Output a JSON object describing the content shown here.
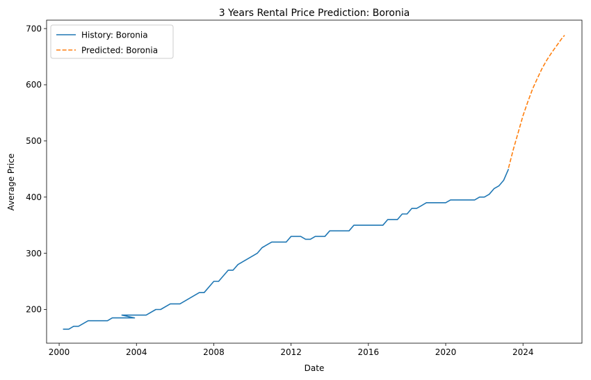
{
  "chart_data": {
    "type": "line",
    "title": "3 Years Rental Price Prediction: Boronia",
    "xlabel": "Date",
    "ylabel": "Average Price",
    "xlim": [
      1999.35,
      2027.05
    ],
    "ylim": [
      140,
      715
    ],
    "x_ticks": [
      2000,
      2004,
      2008,
      2012,
      2016,
      2020,
      2024
    ],
    "y_ticks": [
      200,
      300,
      400,
      500,
      600,
      700
    ],
    "grid": false,
    "legend_position": "top-left",
    "series": [
      {
        "name": "History: Boronia",
        "color": "#1f77b4",
        "dash": "solid",
        "x": [
          2000.2,
          2000.5,
          2000.75,
          2001.0,
          2001.5,
          2002.0,
          2002.5,
          2002.75,
          2003.0,
          2003.25,
          2003.5,
          2003.9,
          2003.25,
          2004.5,
          2005.0,
          2005.25,
          2005.75,
          2006.25,
          2006.75,
          2007.25,
          2007.5,
          2008.0,
          2008.25,
          2008.75,
          2009.0,
          2009.25,
          2010.25,
          2010.5,
          2011.0,
          2011.75,
          2012.0,
          2012.5,
          2012.75,
          2013.0,
          2013.25,
          2013.5,
          2013.75,
          2014.0,
          2014.5,
          2015.0,
          2015.25,
          2015.5,
          2016.75,
          2017.0,
          2017.5,
          2017.75,
          2018.0,
          2018.25,
          2018.5,
          2018.75,
          2019.0,
          2019.5,
          2020.0,
          2020.25,
          2020.5,
          2021.0,
          2021.5,
          2021.75,
          2022.0,
          2022.25,
          2022.5,
          2022.75,
          2023.0,
          2023.25
        ],
        "y": [
          165,
          165,
          170,
          170,
          180,
          180,
          180,
          185,
          185,
          185,
          185,
          185,
          190,
          190,
          200,
          200,
          210,
          210,
          220,
          230,
          230,
          250,
          250,
          270,
          270,
          280,
          300,
          310,
          320,
          320,
          330,
          330,
          325,
          325,
          330,
          330,
          330,
          340,
          340,
          340,
          350,
          350,
          350,
          360,
          360,
          370,
          370,
          380,
          380,
          385,
          390,
          390,
          390,
          395,
          395,
          395,
          395,
          400,
          400,
          405,
          415,
          420,
          430,
          450
        ]
      },
      {
        "name": "Predicted: Boronia",
        "color": "#ff7f0e",
        "dash": "dashed",
        "x": [
          2023.25,
          2023.5,
          2023.75,
          2024.0,
          2024.25,
          2024.5,
          2024.75,
          2025.0,
          2025.25,
          2025.5,
          2025.75,
          2026.0,
          2026.15
        ],
        "y": [
          452,
          485,
          515,
          545,
          570,
          593,
          612,
          630,
          645,
          658,
          670,
          682,
          688
        ]
      }
    ]
  }
}
